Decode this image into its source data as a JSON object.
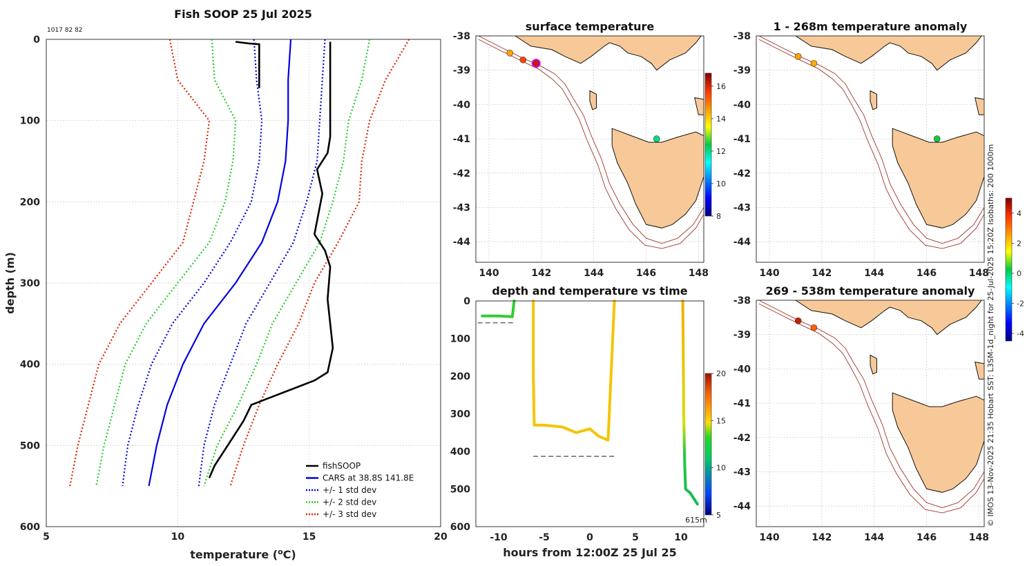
{
  "profile": {
    "title": "Fish SOOP 25 Jul 2025",
    "id_text": "1017 82 82",
    "xlabel": "temperature (",
    "xlabel_sup": "o",
    "xlabel_end": "C)",
    "ylabel": "depth (m)",
    "xticks": [
      "5",
      "10",
      "15",
      "20"
    ],
    "yticks": [
      "0",
      "100",
      "200",
      "300",
      "400",
      "500",
      "600"
    ],
    "legend": [
      {
        "label": "fishSOOP",
        "color": "#000000",
        "style": "solid"
      },
      {
        "label": "CARS at 38.8S 141.8E",
        "color": "#0000e0",
        "style": "solid"
      },
      {
        "label": "+/- 1 std dev",
        "color": "#0000e0",
        "style": "dotted"
      },
      {
        "label": "+/- 2 std dev",
        "color": "#22cc22",
        "style": "dotted"
      },
      {
        "label": "+/- 3 std dev",
        "color": "#e02000",
        "style": "dotted"
      }
    ]
  },
  "chart_data": [
    {
      "type": "line",
      "title": "Fish SOOP 25 Jul 2025",
      "xlabel": "temperature (oC)",
      "ylabel": "depth (m)",
      "xlim": [
        5,
        20
      ],
      "ylim": [
        600,
        0
      ],
      "depths": [
        0,
        50,
        100,
        150,
        200,
        250,
        300,
        350,
        400,
        450,
        500,
        550
      ],
      "series": [
        {
          "name": "CARS at 38.8S 141.8E",
          "values": [
            14.3,
            14.2,
            14.2,
            14.1,
            13.8,
            13.2,
            12.2,
            11.0,
            10.2,
            9.6,
            9.2,
            8.9
          ]
        },
        {
          "name": "+1 std dev",
          "values": [
            15.6,
            15.5,
            15.4,
            15.3,
            14.9,
            14.4,
            13.5,
            12.6,
            12.0,
            11.4,
            11.0,
            10.8
          ]
        },
        {
          "name": "-1 std dev",
          "values": [
            12.9,
            13.0,
            13.2,
            13.1,
            12.8,
            12.0,
            11.0,
            9.8,
            9.0,
            8.5,
            8.1,
            7.9
          ]
        },
        {
          "name": "+2 std dev",
          "values": [
            17.3,
            17.0,
            16.5,
            16.3,
            15.9,
            15.4,
            14.5,
            13.6,
            13.0,
            12.3,
            11.5,
            11.0
          ]
        },
        {
          "name": "-2 std dev",
          "values": [
            11.3,
            11.4,
            12.2,
            12.1,
            11.8,
            11.2,
            10.0,
            8.8,
            8.0,
            7.6,
            7.2,
            6.9
          ]
        },
        {
          "name": "+3 std dev",
          "values": [
            18.8,
            17.9,
            17.3,
            17.0,
            16.9,
            16.1,
            15.2,
            14.6,
            13.8,
            13.1,
            12.5,
            12.0
          ]
        },
        {
          "name": "-3 std dev",
          "values": [
            9.7,
            10.0,
            11.2,
            11.0,
            10.6,
            10.2,
            9.0,
            7.8,
            7.0,
            6.6,
            6.2,
            5.9
          ]
        }
      ],
      "fishSOOP": [
        [
          12.2,
          3
        ],
        [
          12.7,
          5
        ],
        [
          13.1,
          6
        ],
        [
          13.1,
          30
        ],
        [
          13.1,
          60
        ],
        [
          15.8,
          3
        ],
        [
          15.8,
          50
        ],
        [
          15.8,
          120
        ],
        [
          15.7,
          140
        ],
        [
          15.3,
          160
        ],
        [
          15.5,
          190
        ],
        [
          15.2,
          240
        ],
        [
          15.6,
          260
        ],
        [
          15.8,
          280
        ],
        [
          15.7,
          320
        ],
        [
          15.9,
          380
        ],
        [
          15.7,
          410
        ],
        [
          15.2,
          420
        ],
        [
          14.4,
          430
        ],
        [
          12.8,
          450
        ],
        [
          12.5,
          470
        ],
        [
          11.9,
          500
        ],
        [
          11.4,
          525
        ],
        [
          11.2,
          540
        ]
      ]
    },
    {
      "type": "line",
      "title": "depth and temperature vs time",
      "xlabel": "hours from 12:00Z 25 Jul 25",
      "xlim": [
        -12.5,
        12.5
      ],
      "ylim": [
        600,
        0
      ],
      "series": [
        {
          "name": "cast1",
          "values": [
            [
              -11.8,
              40
            ],
            [
              -10,
              40
            ],
            [
              -8.5,
              42
            ],
            [
              -8.3,
              0
            ]
          ]
        },
        {
          "name": "cast2",
          "values": [
            [
              -6.2,
              0
            ],
            [
              -6.2,
              200
            ],
            [
              -6.1,
              330
            ],
            [
              -5,
              330
            ],
            [
              -3,
              335
            ],
            [
              -1.5,
              350
            ],
            [
              0,
              340
            ],
            [
              1,
              360
            ],
            [
              2,
              370
            ],
            [
              2.7,
              0
            ]
          ]
        },
        {
          "name": "cast3",
          "values": [
            [
              10.2,
              0
            ],
            [
              10.3,
              300
            ],
            [
              10.4,
              430
            ],
            [
              10.5,
              500
            ],
            [
              11,
              510
            ],
            [
              11.8,
              540
            ]
          ]
        }
      ],
      "xticks": [
        "-10",
        "-5",
        "0",
        "5",
        "10"
      ],
      "yticks": [
        "0",
        "100",
        "200",
        "300",
        "400",
        "500",
        "600"
      ],
      "depth_label": "615m",
      "colorbar": {
        "ticks": [
          "5",
          "10",
          "15",
          "20"
        ],
        "range": [
          5,
          20
        ]
      }
    },
    {
      "type": "scatter",
      "title": "surface temperature",
      "xlim": [
        139.5,
        148.2
      ],
      "ylim": [
        -44.6,
        -38
      ],
      "points": [
        [
          140.8,
          -38.5,
          14.5
        ],
        [
          141.3,
          -38.7,
          15.5
        ],
        [
          141.8,
          -38.8,
          16.2
        ],
        [
          146.4,
          -41.0,
          12.0
        ]
      ],
      "xticks": [
        "140",
        "142",
        "144",
        "146",
        "148"
      ],
      "yticks": [
        "-38",
        "-39",
        "-40",
        "-41",
        "-42",
        "-43",
        "-44"
      ],
      "colorbar": {
        "ticks": [
          "8",
          "10",
          "12",
          "14",
          "16"
        ],
        "range": [
          8,
          16.8
        ]
      }
    },
    {
      "type": "scatter",
      "title": "1 - 268m temperature anomaly",
      "points": [
        [
          141.1,
          -38.6,
          2.5
        ],
        [
          141.7,
          -38.8,
          2.4
        ],
        [
          146.4,
          -41.0,
          0.3
        ]
      ],
      "xticks": [
        "140",
        "142",
        "144",
        "146",
        "148"
      ],
      "yticks": [
        "-38",
        "-39",
        "-40",
        "-41",
        "-42",
        "-43",
        "-44"
      ]
    },
    {
      "type": "scatter",
      "title": "269 - 538m temperature anomaly",
      "points": [
        [
          141.1,
          -38.6,
          4.3
        ],
        [
          141.7,
          -38.8,
          3.3
        ]
      ],
      "xticks": [
        "140",
        "142",
        "144",
        "146",
        "148"
      ],
      "yticks": [
        "-38",
        "-39",
        "-40",
        "-41",
        "-42",
        "-43",
        "-44"
      ],
      "colorbar": {
        "ticks": [
          "4",
          "2",
          "0",
          "-2",
          "-4"
        ],
        "range": [
          -4.5,
          5
        ]
      }
    }
  ],
  "maps": {
    "surface_title": "surface temperature",
    "anom1_title": "1 - 268m temperature anomaly",
    "anom2_title": "269 - 538m temperature anomaly",
    "timeseries_title": "depth and temperature vs time",
    "timeseries_xlabel": "hours from 12:00Z 25 Jul 25"
  },
  "credit": "© IMOS 13-Nov-2025 21:35 Hobart SST: L3SM-1d_night for 25-Jul-2025 15:20Z Isobaths: 200  1000m",
  "colors": {
    "land": "#f8c998",
    "isobath": "#a0352a",
    "cars": "#0000e0",
    "std2": "#22cc22",
    "std3": "#e02000"
  }
}
